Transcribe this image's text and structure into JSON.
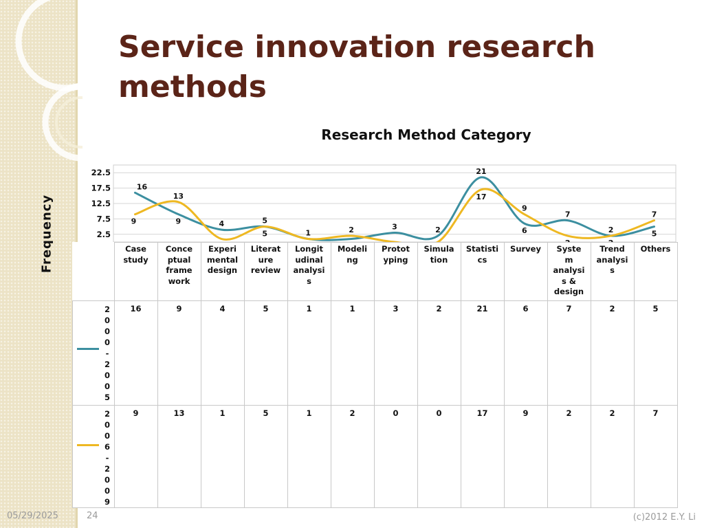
{
  "slide": {
    "title": "Service innovation research methods",
    "footer_date": "05/29/2025",
    "page_number": "24",
    "copyright": "(c)2012 E.Y. Li"
  },
  "chart_data": {
    "type": "line",
    "title": "Research Method Category",
    "ylabel": "Frequency",
    "xlabel": "",
    "categories": [
      "Case study",
      "Conceptual framework",
      "Experimental design",
      "Literature review",
      "Longitudinal analysis",
      "Modeling",
      "Prototyping",
      "Simulation",
      "Statistics",
      "Survey",
      "System analysis & design",
      "Trend analysis",
      "Others"
    ],
    "category_labels_display": [
      "Case\nstudy",
      "Conce\nptual\nframe\nwork",
      "Experi\nmental\ndesign",
      "Literat\nure\nreview",
      "Longit\nudinal\nanalysi\ns",
      "Modeli\nng",
      "Protot\nyping",
      "Simula\ntion",
      "Statisti\ncs",
      "Survey",
      "Syste\nm\nanalysi\ns &\ndesign",
      "Trend\nanalysi\ns",
      "Others"
    ],
    "series": [
      {
        "name": "2000-2005",
        "color": "#3c8fa0",
        "values": [
          16,
          9,
          4,
          5,
          1,
          1,
          3,
          2,
          21,
          6,
          7,
          2,
          5
        ]
      },
      {
        "name": "2006-2009",
        "color": "#eeb822",
        "values": [
          9,
          13,
          1,
          5,
          1,
          2,
          0,
          0,
          17,
          9,
          2,
          2,
          7
        ]
      }
    ],
    "yticks": [
      "2.5",
      "7.5",
      "12.5",
      "17.5",
      "22.5"
    ],
    "ylim": [
      0,
      25
    ],
    "grid": true,
    "smooth": true,
    "legend": "data table"
  }
}
